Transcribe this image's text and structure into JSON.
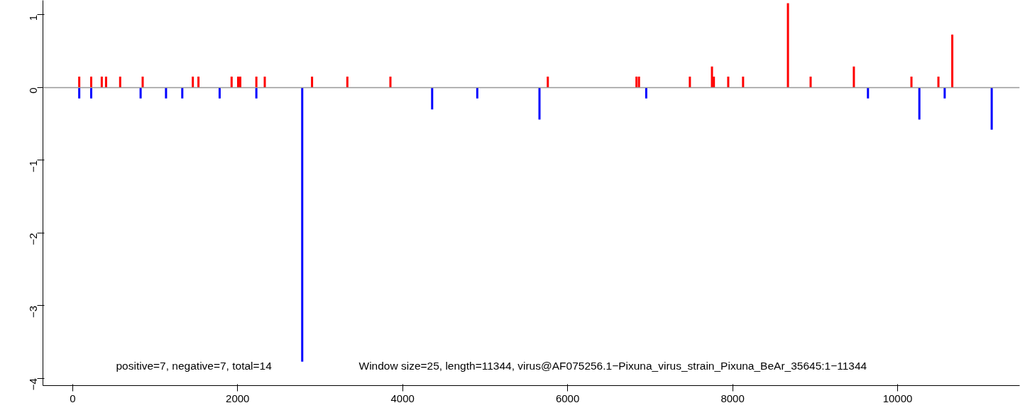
{
  "chart_data": {
    "type": "bar",
    "xlim": [
      -360,
      11480
    ],
    "ylim": [
      -4.1,
      1.2
    ],
    "xticks": [
      0,
      2000,
      4000,
      6000,
      8000,
      10000
    ],
    "yticks": [
      -4,
      -3,
      -2,
      -1,
      0,
      1
    ],
    "grid": false,
    "series": [
      {
        "color": "#ff0000",
        "x": [
          80,
          225,
          353,
          405,
          576,
          849,
          1457,
          1525,
          1927,
          2006,
          2032,
          2227,
          2329,
          2902,
          3330,
          3852,
          5760,
          6835,
          6865,
          7482,
          7750,
          7773,
          7947,
          8127,
          8671,
          8946,
          9470,
          10168,
          10495,
          10663
        ],
        "values": [
          0.15,
          0.15,
          0.15,
          0.15,
          0.15,
          0.15,
          0.15,
          0.15,
          0.15,
          0.15,
          0.15,
          0.15,
          0.15,
          0.15,
          0.15,
          0.15,
          0.15,
          0.15,
          0.15,
          0.15,
          0.29,
          0.15,
          0.15,
          0.15,
          1.16,
          0.15,
          0.29,
          0.15,
          0.15,
          0.73
        ]
      },
      {
        "color": "#0000ff",
        "x": [
          80,
          225,
          824,
          1132,
          1329,
          1782,
          2227,
          2783,
          4358,
          4905,
          5659,
          6953,
          9641,
          10264,
          10571,
          11141
        ],
        "values": [
          -0.15,
          -0.15,
          -0.15,
          -0.15,
          -0.15,
          -0.15,
          -0.15,
          -3.77,
          -0.3,
          -0.15,
          -0.44,
          -0.15,
          -0.15,
          -0.44,
          -0.15,
          -0.58
        ]
      }
    ],
    "ref_lines": [
      {
        "axis": "y",
        "value": 0,
        "color": "#999999"
      }
    ],
    "annotations": [
      "positive=7, negative=7, total=14",
      "Window size=25, length=11344, virus@AF075256.1−Pixuna_virus_strain_Pixuna_BeAr_35645:1−11344"
    ]
  }
}
